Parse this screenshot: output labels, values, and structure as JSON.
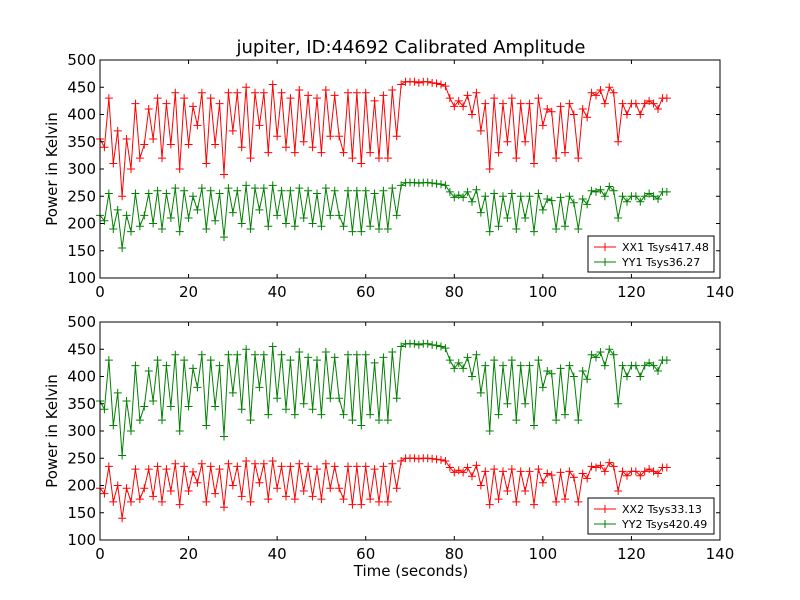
{
  "figure": {
    "title": "jupiter, ID:44692 Calibrated Amplitude",
    "xlabel": "Time (seconds)"
  },
  "chart_data": [
    {
      "type": "line",
      "title": "jupiter, ID:44692 Calibrated Amplitude",
      "xlabel": "",
      "ylabel": "Power in Kelvin",
      "xlim": [
        0,
        140
      ],
      "ylim": [
        100,
        500
      ],
      "xticks": [
        0,
        20,
        40,
        60,
        80,
        100,
        120,
        140
      ],
      "yticks": [
        100,
        150,
        200,
        250,
        300,
        350,
        400,
        450,
        500
      ],
      "legend_position": "lower-right",
      "series": [
        {
          "name": "XX1 Tsys417.48",
          "color": "#ff0000",
          "marker": "plus",
          "x": [
            0,
            1,
            2,
            3,
            4,
            5,
            6,
            7,
            8,
            9,
            10,
            11,
            12,
            13,
            14,
            15,
            16,
            17,
            18,
            19,
            20,
            21,
            22,
            23,
            24,
            25,
            26,
            27,
            28,
            29,
            30,
            31,
            32,
            33,
            34,
            35,
            36,
            37,
            38,
            39,
            40,
            41,
            42,
            43,
            44,
            45,
            46,
            47,
            48,
            49,
            50,
            51,
            52,
            53,
            54,
            55,
            56,
            57,
            58,
            59,
            60,
            61,
            62,
            63,
            64,
            65,
            66,
            67,
            68,
            69,
            70,
            71,
            72,
            73,
            74,
            75,
            76,
            77,
            78,
            79,
            80,
            81,
            82,
            83,
            84,
            85,
            86,
            87,
            88,
            89,
            90,
            91,
            92,
            93,
            94,
            95,
            96,
            97,
            98,
            99,
            100,
            101,
            102,
            103,
            104,
            105,
            106,
            107,
            108,
            109,
            110,
            111,
            112,
            113,
            114,
            115,
            116,
            117,
            118,
            119,
            120,
            121,
            122,
            123,
            124,
            125,
            126,
            127,
            128
          ],
          "y": [
            355,
            340,
            430,
            310,
            370,
            250,
            355,
            300,
            420,
            320,
            345,
            410,
            355,
            430,
            320,
            420,
            345,
            440,
            300,
            430,
            345,
            415,
            380,
            440,
            310,
            430,
            345,
            420,
            290,
            440,
            370,
            440,
            340,
            450,
            320,
            440,
            380,
            440,
            330,
            455,
            360,
            440,
            340,
            430,
            330,
            445,
            350,
            435,
            340,
            430,
            330,
            445,
            360,
            435,
            360,
            330,
            440,
            320,
            440,
            310,
            440,
            330,
            425,
            320,
            435,
            320,
            445,
            360,
            455,
            460,
            460,
            460,
            458,
            460,
            460,
            458,
            457,
            455,
            452,
            430,
            415,
            425,
            415,
            435,
            400,
            440,
            370,
            420,
            300,
            430,
            330,
            420,
            350,
            430,
            320,
            420,
            350,
            420,
            310,
            430,
            380,
            410,
            405,
            320,
            415,
            330,
            420,
            400,
            320,
            410,
            395,
            440,
            435,
            445,
            420,
            450,
            440,
            350,
            420,
            400,
            420,
            420,
            400,
            420,
            425,
            420,
            410,
            430,
            430
          ]
        },
        {
          "name": "YY1 Tsys36.27",
          "color": "#008000",
          "marker": "plus",
          "x": [
            0,
            1,
            2,
            3,
            4,
            5,
            6,
            7,
            8,
            9,
            10,
            11,
            12,
            13,
            14,
            15,
            16,
            17,
            18,
            19,
            20,
            21,
            22,
            23,
            24,
            25,
            26,
            27,
            28,
            29,
            30,
            31,
            32,
            33,
            34,
            35,
            36,
            37,
            38,
            39,
            40,
            41,
            42,
            43,
            44,
            45,
            46,
            47,
            48,
            49,
            50,
            51,
            52,
            53,
            54,
            55,
            56,
            57,
            58,
            59,
            60,
            61,
            62,
            63,
            64,
            65,
            66,
            67,
            68,
            69,
            70,
            71,
            72,
            73,
            74,
            75,
            76,
            77,
            78,
            79,
            80,
            81,
            82,
            83,
            84,
            85,
            86,
            87,
            88,
            89,
            90,
            91,
            92,
            93,
            94,
            95,
            96,
            97,
            98,
            99,
            100,
            101,
            102,
            103,
            104,
            105,
            106,
            107,
            108,
            109,
            110,
            111,
            112,
            113,
            114,
            115,
            116,
            117,
            118,
            119,
            120,
            121,
            122,
            123,
            124,
            125,
            126,
            127,
            128
          ],
          "y": [
            215,
            205,
            255,
            190,
            225,
            155,
            215,
            185,
            255,
            195,
            215,
            255,
            200,
            260,
            190,
            255,
            210,
            265,
            185,
            260,
            210,
            250,
            225,
            265,
            190,
            260,
            205,
            255,
            175,
            265,
            220,
            260,
            200,
            270,
            190,
            265,
            225,
            265,
            195,
            270,
            215,
            260,
            200,
            260,
            195,
            265,
            210,
            260,
            200,
            255,
            195,
            265,
            215,
            260,
            215,
            195,
            260,
            185,
            260,
            185,
            260,
            195,
            255,
            190,
            260,
            190,
            265,
            215,
            270,
            275,
            275,
            275,
            274,
            275,
            275,
            274,
            273,
            272,
            270,
            258,
            248,
            252,
            248,
            258,
            240,
            262,
            220,
            250,
            185,
            255,
            195,
            250,
            210,
            255,
            190,
            250,
            210,
            250,
            185,
            255,
            225,
            245,
            242,
            190,
            248,
            195,
            250,
            238,
            190,
            245,
            235,
            260,
            258,
            262,
            250,
            268,
            260,
            210,
            250,
            240,
            250,
            250,
            240,
            250,
            255,
            250,
            245,
            258,
            258
          ]
        }
      ]
    },
    {
      "type": "line",
      "title": "",
      "xlabel": "Time (seconds)",
      "ylabel": "Power in Kelvin",
      "xlim": [
        0,
        140
      ],
      "ylim": [
        100,
        500
      ],
      "xticks": [
        0,
        20,
        40,
        60,
        80,
        100,
        120,
        140
      ],
      "yticks": [
        100,
        150,
        200,
        250,
        300,
        350,
        400,
        450,
        500
      ],
      "legend_position": "lower-right",
      "series": [
        {
          "name": "XX2 Tsys33.13",
          "color": "#ff0000",
          "marker": "plus",
          "x": [
            0,
            1,
            2,
            3,
            4,
            5,
            6,
            7,
            8,
            9,
            10,
            11,
            12,
            13,
            14,
            15,
            16,
            17,
            18,
            19,
            20,
            21,
            22,
            23,
            24,
            25,
            26,
            27,
            28,
            29,
            30,
            31,
            32,
            33,
            34,
            35,
            36,
            37,
            38,
            39,
            40,
            41,
            42,
            43,
            44,
            45,
            46,
            47,
            48,
            49,
            50,
            51,
            52,
            53,
            54,
            55,
            56,
            57,
            58,
            59,
            60,
            61,
            62,
            63,
            64,
            65,
            66,
            67,
            68,
            69,
            70,
            71,
            72,
            73,
            74,
            75,
            76,
            77,
            78,
            79,
            80,
            81,
            82,
            83,
            84,
            85,
            86,
            87,
            88,
            89,
            90,
            91,
            92,
            93,
            94,
            95,
            96,
            97,
            98,
            99,
            100,
            101,
            102,
            103,
            104,
            105,
            106,
            107,
            108,
            109,
            110,
            111,
            112,
            113,
            114,
            115,
            116,
            117,
            118,
            119,
            120,
            121,
            122,
            123,
            124,
            125,
            126,
            127,
            128
          ],
          "y": [
            195,
            185,
            235,
            170,
            200,
            140,
            195,
            170,
            230,
            175,
            195,
            230,
            180,
            235,
            170,
            230,
            190,
            240,
            165,
            235,
            190,
            225,
            205,
            240,
            170,
            235,
            185,
            230,
            160,
            240,
            200,
            235,
            180,
            245,
            170,
            240,
            205,
            240,
            175,
            245,
            195,
            235,
            180,
            235,
            175,
            240,
            190,
            235,
            180,
            230,
            175,
            240,
            195,
            235,
            195,
            175,
            235,
            165,
            235,
            165,
            235,
            175,
            230,
            170,
            235,
            170,
            240,
            195,
            245,
            250,
            250,
            250,
            249,
            250,
            250,
            249,
            248,
            247,
            245,
            233,
            224,
            228,
            224,
            233,
            217,
            237,
            200,
            226,
            165,
            230,
            175,
            226,
            190,
            230,
            170,
            226,
            190,
            226,
            165,
            230,
            205,
            222,
            219,
            170,
            224,
            175,
            226,
            215,
            170,
            222,
            213,
            235,
            233,
            237,
            226,
            242,
            235,
            190,
            226,
            218,
            226,
            226,
            218,
            226,
            230,
            226,
            222,
            233,
            233
          ]
        },
        {
          "name": "YY2 Tsys420.49",
          "color": "#008000",
          "marker": "plus",
          "x": [
            0,
            1,
            2,
            3,
            4,
            5,
            6,
            7,
            8,
            9,
            10,
            11,
            12,
            13,
            14,
            15,
            16,
            17,
            18,
            19,
            20,
            21,
            22,
            23,
            24,
            25,
            26,
            27,
            28,
            29,
            30,
            31,
            32,
            33,
            34,
            35,
            36,
            37,
            38,
            39,
            40,
            41,
            42,
            43,
            44,
            45,
            46,
            47,
            48,
            49,
            50,
            51,
            52,
            53,
            54,
            55,
            56,
            57,
            58,
            59,
            60,
            61,
            62,
            63,
            64,
            65,
            66,
            67,
            68,
            69,
            70,
            71,
            72,
            73,
            74,
            75,
            76,
            77,
            78,
            79,
            80,
            81,
            82,
            83,
            84,
            85,
            86,
            87,
            88,
            89,
            90,
            91,
            92,
            93,
            94,
            95,
            96,
            97,
            98,
            99,
            100,
            101,
            102,
            103,
            104,
            105,
            106,
            107,
            108,
            109,
            110,
            111,
            112,
            113,
            114,
            115,
            116,
            117,
            118,
            119,
            120,
            121,
            122,
            123,
            124,
            125,
            126,
            127,
            128
          ],
          "y": [
            355,
            340,
            430,
            310,
            370,
            255,
            355,
            300,
            420,
            320,
            345,
            410,
            355,
            430,
            320,
            420,
            345,
            440,
            300,
            430,
            345,
            415,
            380,
            440,
            310,
            430,
            345,
            420,
            290,
            440,
            370,
            440,
            340,
            450,
            320,
            440,
            380,
            440,
            330,
            455,
            360,
            440,
            340,
            430,
            330,
            445,
            350,
            435,
            340,
            430,
            330,
            445,
            360,
            435,
            360,
            330,
            440,
            320,
            440,
            310,
            440,
            330,
            425,
            320,
            435,
            320,
            445,
            360,
            455,
            460,
            460,
            460,
            458,
            460,
            460,
            458,
            457,
            455,
            452,
            430,
            415,
            425,
            415,
            435,
            400,
            440,
            370,
            420,
            300,
            430,
            330,
            420,
            350,
            430,
            320,
            420,
            350,
            420,
            310,
            430,
            380,
            410,
            405,
            320,
            415,
            330,
            420,
            400,
            320,
            410,
            395,
            440,
            435,
            445,
            420,
            450,
            440,
            350,
            420,
            400,
            420,
            420,
            400,
            420,
            425,
            420,
            410,
            430,
            430
          ]
        }
      ]
    }
  ]
}
